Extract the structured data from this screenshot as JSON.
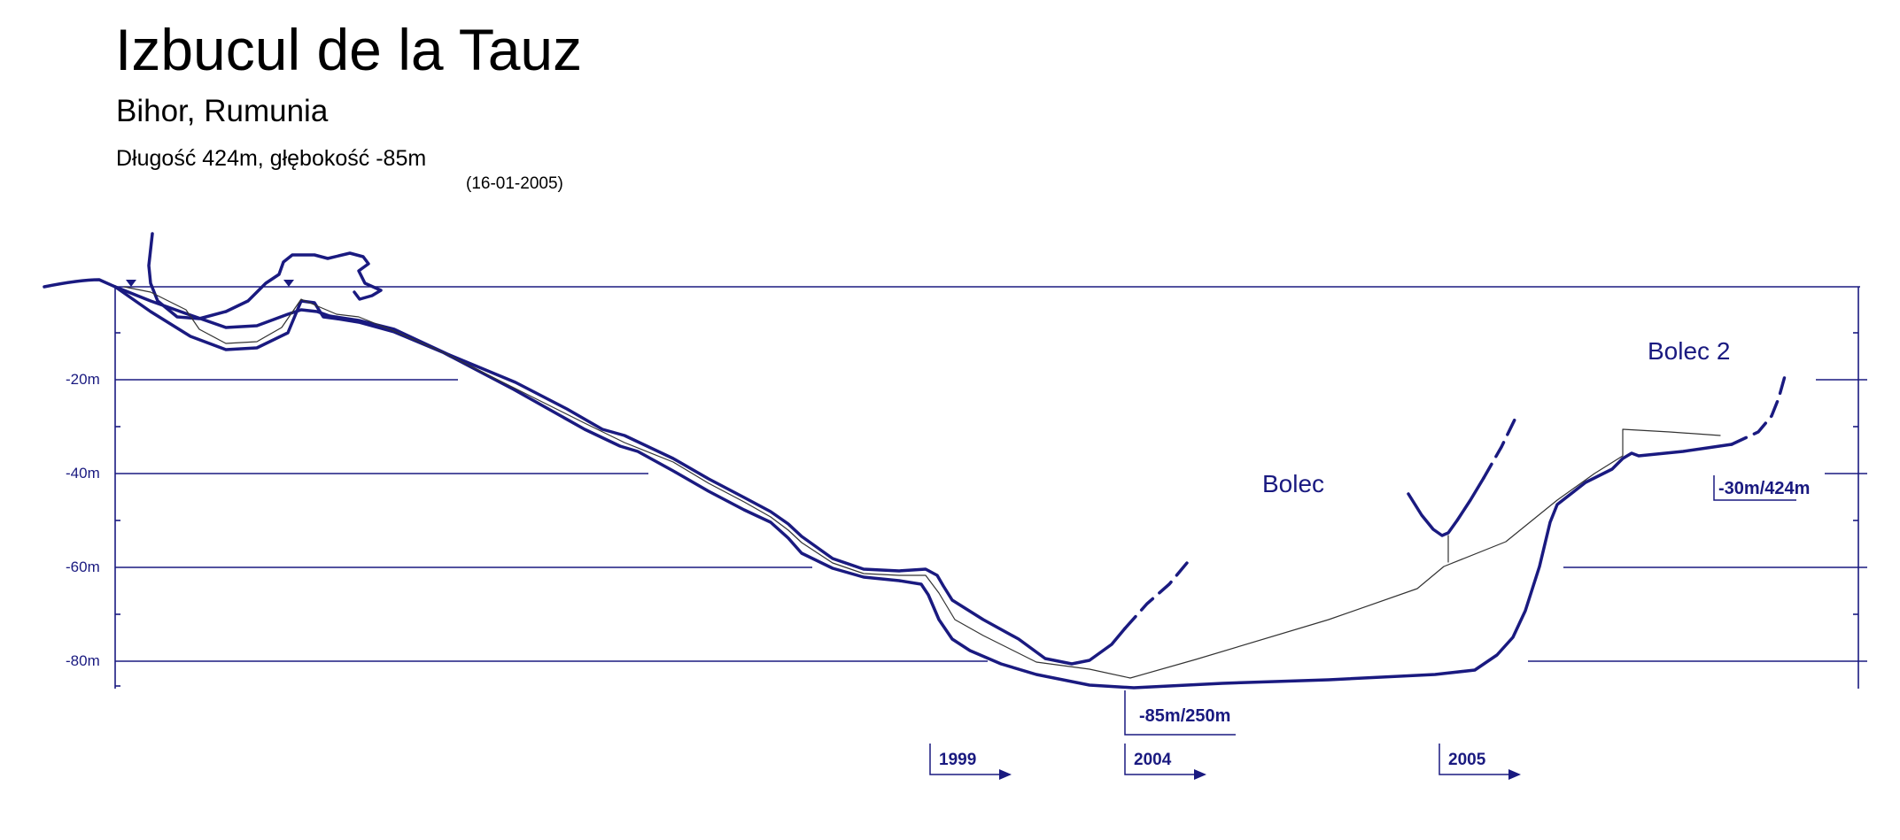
{
  "header": {
    "title": "Izbucul de la Tauz",
    "subtitle": "Bihor, Rumunia",
    "info": "Długość 424m, głębokość -85m",
    "date": "(16-01-2005)"
  },
  "depth_axis": {
    "labels": [
      "-20m",
      "-40m",
      "-60m",
      "-80m"
    ]
  },
  "labels": {
    "bolec": "Bolec",
    "bolec2": "Bolec 2",
    "deepest": "-85m/250m",
    "end": "-30m/424m"
  },
  "years": [
    "1999",
    "2004",
    "2005"
  ],
  "colors": {
    "line": "#1a1a80",
    "thin": "#333333",
    "text": "#000000"
  }
}
